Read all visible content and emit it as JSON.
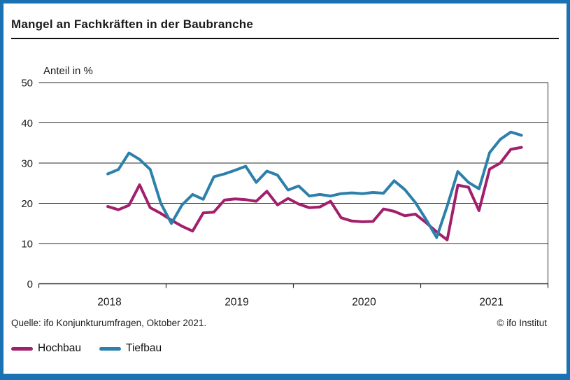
{
  "header": {
    "title": "Mangel an Fachkräften in der Baubranche"
  },
  "chart_data": {
    "type": "line",
    "title": "Mangel an Fachkräften in der Baubranche",
    "ylabel": "Anteil in %",
    "ylim": [
      0,
      50
    ],
    "yticks": [
      0,
      10,
      20,
      30,
      40,
      50
    ],
    "grid": "horizontal",
    "legend_position": "bottom-left",
    "x_axis_years": [
      "2018",
      "2019",
      "2020",
      "2021"
    ],
    "x_domain_months": 48,
    "x_offset_months": 6,
    "x_start": "2018-07",
    "x_end": "2021-10",
    "x_frequency": "monthly",
    "series": [
      {
        "name": "Hochbau",
        "color": "#a21f6c",
        "values": [
          19.2,
          18.4,
          19.5,
          24.6,
          18.9,
          17.5,
          15.8,
          14.3,
          13.1,
          17.6,
          17.8,
          20.8,
          21.1,
          20.9,
          20.5,
          23.0,
          19.6,
          21.2,
          19.8,
          18.9,
          19.1,
          20.5,
          16.4,
          15.6,
          15.4,
          15.5,
          18.6,
          18.0,
          16.9,
          17.3,
          15.2,
          12.9,
          10.9,
          24.5,
          24.0,
          18.2,
          28.5,
          30.0,
          33.4,
          33.9
        ]
      },
      {
        "name": "Tiefbau",
        "color": "#2c80a9",
        "values": [
          27.3,
          28.4,
          32.5,
          30.9,
          28.4,
          20.0,
          15.0,
          19.6,
          22.2,
          21.0,
          26.6,
          27.3,
          28.2,
          29.2,
          25.2,
          28.0,
          27.0,
          23.3,
          24.3,
          21.8,
          22.2,
          21.8,
          22.4,
          22.6,
          22.4,
          22.7,
          22.5,
          25.6,
          23.4,
          20.2,
          16.0,
          11.5,
          19.3,
          27.9,
          25.2,
          23.6,
          32.6,
          35.9,
          37.7,
          36.9
        ]
      }
    ]
  },
  "footer": {
    "source": "Quelle: ifo Konjunkturumfragen, Oktober 2021.",
    "credit": "© ifo Institut"
  }
}
